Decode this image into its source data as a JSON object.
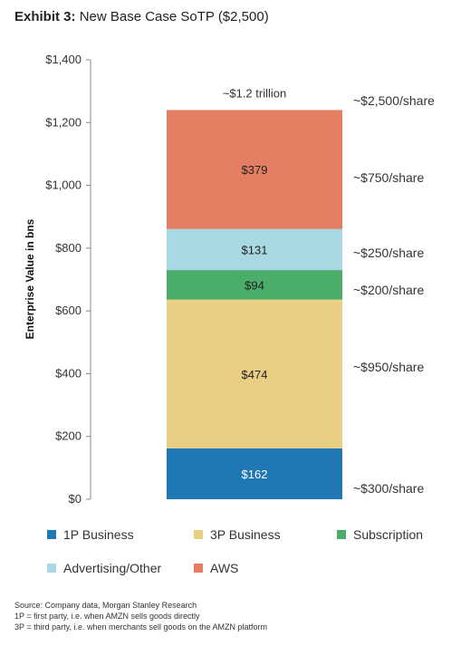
{
  "header": {
    "lead": "Exhibit 3:",
    "title": "New Base Case SoTP ($2,500)"
  },
  "chart_data": {
    "type": "bar",
    "stacked": true,
    "ylabel": "Enterprise Value in bns",
    "ylim": [
      0,
      1400
    ],
    "yticks": [
      0,
      200,
      400,
      600,
      800,
      1000,
      1200,
      1400
    ],
    "ytick_labels": [
      "$0",
      "$200",
      "$400",
      "$600",
      "$800",
      "$1,000",
      "$1,200",
      "$1,400"
    ],
    "grid": false,
    "total_label": "~$1.2 trillion",
    "series": [
      {
        "name": "1P Business",
        "value": 162,
        "label": "$162",
        "share_label": "~$300/share",
        "color": "#1f77b4",
        "text_color": "#ffffff"
      },
      {
        "name": "3P Business",
        "value": 474,
        "label": "$474",
        "share_label": "~$950/share",
        "color": "#e9cf83",
        "text_color": "#222222"
      },
      {
        "name": "Subscription",
        "value": 94,
        "label": "$94",
        "share_label": "~$200/share",
        "color": "#4aad6a",
        "text_color": "#222222"
      },
      {
        "name": "Advertising/Other",
        "value": 131,
        "label": "$131",
        "share_label": "~$250/share",
        "color": "#a8d8e2",
        "text_color": "#222222"
      },
      {
        "name": "AWS",
        "value": 379,
        "label": "$379",
        "share_label": "~$750/share",
        "color": "#e47f63",
        "text_color": "#222222"
      }
    ],
    "top_share_label": "~$2,500/share",
    "legend_position": "bottom"
  },
  "legend": {
    "items": [
      {
        "label": "1P Business",
        "color": "#1f77b4"
      },
      {
        "label": "3P Business",
        "color": "#e9cf83"
      },
      {
        "label": "Subscription",
        "color": "#4aad6a"
      },
      {
        "label": "Advertising/Other",
        "color": "#a8d8e2"
      },
      {
        "label": "AWS",
        "color": "#e47f63"
      }
    ]
  },
  "footer": {
    "source": "Source: Company data, Morgan Stanley Research",
    "note1": "1P = first party, i.e. when AMZN sells goods directly",
    "note2": "3P = third party, i.e. when merchants sell goods on the AMZN platform"
  }
}
